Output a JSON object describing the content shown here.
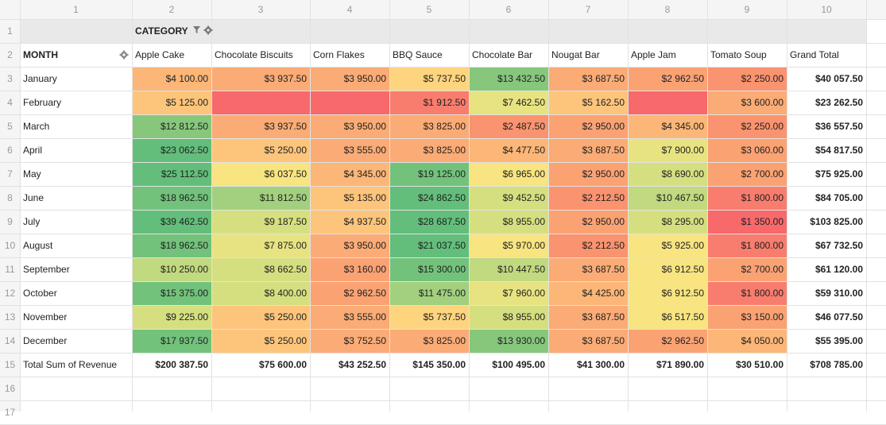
{
  "sheet": {
    "column_numbers": [
      1,
      2,
      3,
      4,
      5,
      6,
      7,
      8,
      9,
      10
    ],
    "row_numbers": [
      1,
      2,
      3,
      4,
      5,
      6,
      7,
      8,
      9,
      10,
      11,
      12,
      13,
      14,
      15,
      16,
      17
    ]
  },
  "pivot": {
    "column_field": "CATEGORY",
    "row_field": "MONTH",
    "columns": [
      "Apple Cake",
      "Chocolate Biscuits",
      "Corn Flakes",
      "BBQ Sauce",
      "Chocolate Bar",
      "Nougat Bar",
      "Apple Jam",
      "Tomato Soup",
      "Grand Total"
    ],
    "rows": [
      {
        "label": "January",
        "cells": [
          "$4 100.00",
          "$3 937.50",
          "$3 950.00",
          "$5 737.50",
          "$13 432.50",
          "$3 687.50",
          "$2 962.50",
          "$2 250.00"
        ],
        "total": "$40 057.50",
        "colors": [
          "#fcb677",
          "#fbab75",
          "#fbab75",
          "#fed47e",
          "#86c77c",
          "#fbab75",
          "#fba273",
          "#fa936f"
        ]
      },
      {
        "label": "February",
        "cells": [
          "$5 125.00",
          null,
          null,
          "$1 912.50",
          "$7 462.50",
          "$5 162.50",
          null,
          "$3 600.00"
        ],
        "total": "$23 262.50",
        "colors": [
          "#fdc57b",
          "#f8696b",
          "#f8696b",
          "#f97d6e",
          "#e7e381",
          "#fdc57b",
          "#f8696b",
          "#fbab75"
        ]
      },
      {
        "label": "March",
        "cells": [
          "$12 812.50",
          "$3 937.50",
          "$3 950.00",
          "$3 825.00",
          "$2 487.50",
          "$2 950.00",
          "$4 345.00",
          "$2 250.00"
        ],
        "total": "$36 557.50",
        "colors": [
          "#86c77c",
          "#fbab75",
          "#fbab75",
          "#fbab75",
          "#fa936f",
          "#fba273",
          "#fcb677",
          "#fa936f"
        ]
      },
      {
        "label": "April",
        "cells": [
          "$23 062.50",
          "$5 250.00",
          "$3 555.00",
          "$3 825.00",
          "$4 477.50",
          "$3 687.50",
          "$7 900.00",
          "$3 060.00"
        ],
        "total": "$54 817.50",
        "colors": [
          "#63be7b",
          "#fdc57b",
          "#fbab75",
          "#fbab75",
          "#fcb677",
          "#fbab75",
          "#e7e381",
          "#fba273"
        ]
      },
      {
        "label": "May",
        "cells": [
          "$25 112.50",
          "$6 037.50",
          "$4 345.00",
          "$19 125.00",
          "$6 965.00",
          "$2 950.00",
          "$8 690.00",
          "$2 700.00"
        ],
        "total": "$75 925.00",
        "colors": [
          "#63be7b",
          "#f8e480",
          "#fcb677",
          "#72c27b",
          "#f8e480",
          "#fba273",
          "#d6df80",
          "#fba273"
        ]
      },
      {
        "label": "June",
        "cells": [
          "$18 962.50",
          "$11 812.50",
          "$5 135.00",
          "$24 862.50",
          "$9 452.50",
          "$2 212.50",
          "$10 467.50",
          "$1 800.00"
        ],
        "total": "$84 705.00",
        "colors": [
          "#72c27b",
          "#a2d07e",
          "#fdc57b",
          "#63be7b",
          "#d6df80",
          "#fa936f",
          "#c1d97f",
          "#f97d6e"
        ]
      },
      {
        "label": "July",
        "cells": [
          "$39 462.50",
          "$9 187.50",
          "$4 937.50",
          "$28 687.50",
          "$8 955.00",
          "$2 950.00",
          "$8 295.00",
          "$1 350.00"
        ],
        "total": "$103 825.00",
        "colors": [
          "#63be7b",
          "#d6df80",
          "#fdc57b",
          "#63be7b",
          "#d6df80",
          "#fba273",
          "#d6df80",
          "#f8696b"
        ]
      },
      {
        "label": "August",
        "cells": [
          "$18 962.50",
          "$7 875.00",
          "$3 950.00",
          "$21 037.50",
          "$5 970.00",
          "$2 212.50",
          "$5 925.00",
          "$1 800.00"
        ],
        "total": "$67 732.50",
        "colors": [
          "#72c27b",
          "#e7e381",
          "#fbab75",
          "#63be7b",
          "#f8e480",
          "#fa936f",
          "#f8e480",
          "#f97d6e"
        ]
      },
      {
        "label": "September",
        "cells": [
          "$10 250.00",
          "$8 662.50",
          "$3 160.00",
          "$15 300.00",
          "$10 447.50",
          "$3 687.50",
          "$6 912.50",
          "$2 700.00"
        ],
        "total": "$61 120.00",
        "colors": [
          "#c1d97f",
          "#d6df80",
          "#fba273",
          "#72c27b",
          "#c1d97f",
          "#fbab75",
          "#f8e480",
          "#fba273"
        ]
      },
      {
        "label": "October",
        "cells": [
          "$15 375.00",
          "$8 400.00",
          "$2 962.50",
          "$11 475.00",
          "$7 960.00",
          "$4 425.00",
          "$6 912.50",
          "$1 800.00"
        ],
        "total": "$59 310.00",
        "colors": [
          "#72c27b",
          "#d6df80",
          "#fba273",
          "#a2d07e",
          "#e7e381",
          "#fcb677",
          "#f8e480",
          "#f97d6e"
        ]
      },
      {
        "label": "November",
        "cells": [
          "$9 225.00",
          "$5 250.00",
          "$3 555.00",
          "$5 737.50",
          "$8 955.00",
          "$3 687.50",
          "$6 517.50",
          "$3 150.00"
        ],
        "total": "$46 077.50",
        "colors": [
          "#d6df80",
          "#fdc57b",
          "#fbab75",
          "#fed47e",
          "#d6df80",
          "#fbab75",
          "#f8e480",
          "#fba273"
        ]
      },
      {
        "label": "December",
        "cells": [
          "$17 937.50",
          "$5 250.00",
          "$3 752.50",
          "$3 825.00",
          "$13 930.00",
          "$3 687.50",
          "$2 962.50",
          "$4 050.00"
        ],
        "total": "$55 395.00",
        "colors": [
          "#72c27b",
          "#fdc57b",
          "#fbab75",
          "#fbab75",
          "#86c77c",
          "#fbab75",
          "#fba273",
          "#fcb677"
        ]
      }
    ],
    "total_row": {
      "label": "Total Sum of Revenue",
      "cells": [
        "$200 387.50",
        "$75 600.00",
        "$43 252.50",
        "$145 350.00",
        "$100 495.00",
        "$41 300.00",
        "$71 890.00",
        "$30 510.00",
        "$708 785.00"
      ]
    }
  }
}
